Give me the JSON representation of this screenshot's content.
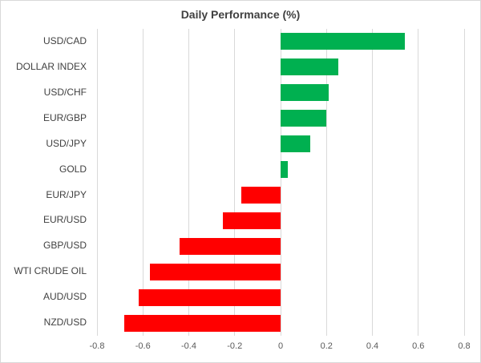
{
  "chart_data": {
    "type": "bar",
    "orientation": "horizontal",
    "title": "Daily Performance (%)",
    "categories": [
      "USD/CAD",
      "DOLLAR INDEX",
      "USD/CHF",
      "EUR/GBP",
      "USD/JPY",
      "GOLD",
      "EUR/JPY",
      "EUR/USD",
      "GBP/USD",
      "WTI CRUDE OIL",
      "AUD/USD",
      "NZD/USD"
    ],
    "values": [
      0.54,
      0.25,
      0.21,
      0.2,
      0.13,
      0.03,
      -0.17,
      -0.25,
      -0.44,
      -0.57,
      -0.62,
      -0.68
    ],
    "xlabel": "",
    "ylabel": "",
    "xlim": [
      -0.8,
      0.8
    ],
    "x_ticks": [
      -0.8,
      -0.6,
      -0.4,
      -0.2,
      0,
      0.2,
      0.4,
      0.6,
      0.8
    ],
    "grid": "vertical-only",
    "legend": "none",
    "colors": {
      "positive": "#00b050",
      "negative": "#ff0000",
      "gridline": "#d9d9d9",
      "border": "#d9d9d9",
      "background": "#ffffff",
      "title_text": "#404040",
      "category_text": "#404040",
      "axis_text": "#595959"
    }
  }
}
